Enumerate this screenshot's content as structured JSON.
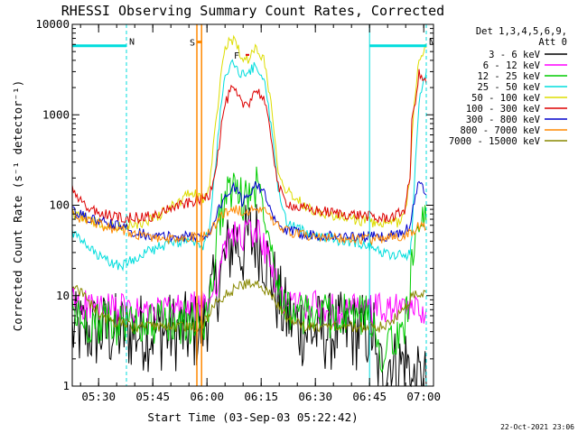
{
  "chart_data": {
    "type": "line",
    "title": "RHESSI Observing Summary Count Rates, Corrected",
    "xlabel": "Start Time (03-Sep-03 05:22:42)",
    "ylabel": "Corrected Count Rate (s⁻¹ detector⁻¹)",
    "yscale": "log",
    "ylim": [
      1,
      10000
    ],
    "xlim_minutes": [
      0,
      100
    ],
    "x_ticks": [
      {
        "t": 7.3,
        "label": "05:30"
      },
      {
        "t": 22.3,
        "label": "05:45"
      },
      {
        "t": 37.3,
        "label": "06:00"
      },
      {
        "t": 52.3,
        "label": "06:15"
      },
      {
        "t": 67.3,
        "label": "06:30"
      },
      {
        "t": 82.3,
        "label": "06:45"
      },
      {
        "t": 97.3,
        "label": "07:00"
      }
    ],
    "y_ticks": [
      {
        "v": 1,
        "label": "1"
      },
      {
        "v": 10,
        "label": "10"
      },
      {
        "v": 100,
        "label": "100"
      },
      {
        "v": 1000,
        "label": "1000"
      },
      {
        "v": 10000,
        "label": "10000"
      }
    ],
    "legend_header": [
      "Det 1,3,4,5,6,9,",
      "Att 0"
    ],
    "series": [
      {
        "name": "3 - 6 keV",
        "color": "#000000",
        "x": [
          0,
          3,
          8,
          12,
          14,
          16,
          18,
          20,
          22,
          24,
          26,
          28,
          30,
          32,
          33.5,
          35,
          36.5,
          38,
          40,
          42,
          44,
          45,
          47,
          49,
          50,
          51,
          53,
          55,
          57,
          59,
          62,
          65,
          70,
          75,
          80,
          82,
          83.5,
          84,
          86,
          88,
          90,
          92,
          93.5,
          94,
          96,
          98
        ],
        "y": [
          4,
          4,
          4,
          4,
          4,
          4,
          4,
          4,
          4,
          4,
          4,
          4,
          4,
          4,
          4,
          4,
          5,
          8,
          13,
          23,
          37,
          45,
          30,
          48,
          38,
          46,
          30,
          18,
          9,
          6,
          5,
          4,
          4,
          4,
          4,
          4,
          4,
          1.5,
          1.5,
          2,
          1.5,
          2,
          1.5,
          1,
          1,
          1
        ]
      },
      {
        "name": "6 - 12 keV",
        "color": "#ff00ff",
        "x": [
          0,
          3,
          8,
          12,
          14,
          16,
          18,
          20,
          22,
          24,
          26,
          28,
          30,
          32,
          33.5,
          35,
          36.5,
          38,
          40,
          42,
          44,
          45,
          47,
          49,
          50,
          51,
          53,
          55,
          57,
          59,
          62,
          65,
          70,
          75,
          80,
          82,
          83.5,
          84,
          86,
          88,
          90,
          92,
          93.5,
          94,
          96,
          98
        ],
        "y": [
          9,
          8,
          7,
          7,
          7,
          6.5,
          6.5,
          6.5,
          6.5,
          6.5,
          6.8,
          7,
          7,
          7,
          7.5,
          7.5,
          7.8,
          9,
          15,
          28,
          48,
          55,
          38,
          58,
          42,
          55,
          36,
          20,
          11,
          9,
          8,
          8,
          7,
          7,
          7,
          7,
          7,
          7,
          7,
          7,
          7,
          7,
          7,
          7,
          7,
          7
        ]
      },
      {
        "name": "12 - 25 keV",
        "color": "#00cc00",
        "x": [
          0,
          3,
          8,
          12,
          14,
          16,
          18,
          20,
          22,
          24,
          26,
          28,
          30,
          32,
          33.5,
          35,
          36.5,
          38,
          40,
          42,
          44,
          45,
          47,
          49,
          50,
          51,
          53,
          55,
          57,
          59,
          62,
          65,
          70,
          75,
          80,
          82,
          83.5,
          84,
          86,
          88,
          90,
          92,
          93.5,
          94,
          96,
          98
        ],
        "y": [
          7,
          5,
          5,
          5,
          5,
          5,
          5,
          5,
          5,
          5,
          5,
          5,
          5,
          5,
          5,
          5,
          5,
          8,
          40,
          120,
          150,
          160,
          110,
          140,
          150,
          170,
          110,
          45,
          14,
          8,
          6,
          6,
          6,
          6,
          6,
          6,
          6,
          2.5,
          2.5,
          3,
          3,
          5,
          12,
          25,
          45,
          65
        ]
      },
      {
        "name": "25 - 50 keV",
        "color": "#00dddd",
        "x": [
          0,
          3,
          8,
          12,
          14,
          16,
          18,
          20,
          22,
          24,
          26,
          28,
          30,
          32,
          33.5,
          35,
          36.5,
          38,
          40,
          42,
          44,
          45,
          47,
          49,
          50,
          51,
          53,
          55,
          57,
          59,
          62,
          65,
          70,
          75,
          80,
          82,
          83.5,
          84,
          86,
          88,
          90,
          92,
          93.5,
          94,
          96,
          98
        ],
        "y": [
          50,
          38,
          26,
          22,
          22,
          24,
          27,
          30,
          32,
          34,
          36,
          38,
          40,
          40,
          38,
          34,
          36,
          60,
          380,
          2700,
          3600,
          3400,
          2800,
          3000,
          3300,
          3500,
          2500,
          800,
          150,
          70,
          55,
          50,
          45,
          40,
          38,
          36,
          36,
          32,
          30,
          28,
          28,
          28,
          30,
          50,
          1500,
          3000
        ]
      },
      {
        "name": "50 - 100 keV",
        "color": "#dddd00",
        "x": [
          0,
          3,
          8,
          12,
          14,
          16,
          18,
          20,
          22,
          24,
          26,
          28,
          30,
          32,
          33.5,
          35,
          36.5,
          38,
          40,
          42,
          44,
          45,
          47,
          49,
          50,
          51,
          53,
          55,
          57,
          59,
          62,
          65,
          70,
          75,
          80,
          82,
          83.5,
          84,
          86,
          88,
          90,
          92,
          93.5,
          94,
          96,
          98
        ],
        "y": [
          80,
          75,
          60,
          58,
          58,
          60,
          62,
          65,
          70,
          78,
          88,
          100,
          110,
          130,
          140,
          120,
          120,
          160,
          1000,
          5200,
          6800,
          6600,
          4400,
          4000,
          5000,
          5600,
          4200,
          1400,
          260,
          150,
          120,
          95,
          80,
          72,
          68,
          66,
          65,
          60,
          60,
          62,
          65,
          80,
          200,
          600,
          4500,
          5500
        ]
      },
      {
        "name": "100 - 300 keV",
        "color": "#dd0000",
        "x": [
          0,
          3,
          8,
          12,
          14,
          16,
          18,
          20,
          22,
          24,
          26,
          28,
          30,
          32,
          33.5,
          35,
          36.5,
          38,
          40,
          42,
          44,
          45,
          47,
          49,
          50,
          51,
          53,
          55,
          57,
          59,
          62,
          65,
          70,
          75,
          80,
          82,
          83.5,
          84,
          86,
          88,
          90,
          92,
          93.5,
          94,
          96,
          98
        ],
        "y": [
          150,
          100,
          80,
          75,
          73,
          73,
          73,
          74,
          75,
          80,
          88,
          95,
          100,
          105,
          110,
          115,
          120,
          130,
          300,
          1200,
          1900,
          1800,
          1300,
          1400,
          1700,
          1900,
          1500,
          600,
          160,
          110,
          95,
          90,
          85,
          80,
          78,
          76,
          75,
          70,
          72,
          74,
          78,
          90,
          200,
          800,
          2800,
          2200
        ]
      },
      {
        "name": "300 - 800 keV",
        "color": "#0000cc",
        "x": [
          0,
          3,
          8,
          12,
          14,
          16,
          18,
          20,
          22,
          24,
          26,
          28,
          30,
          32,
          33.5,
          35,
          36.5,
          38,
          40,
          42,
          44,
          45,
          47,
          49,
          50,
          51,
          53,
          55,
          57,
          59,
          62,
          65,
          70,
          75,
          80,
          82,
          83.5,
          84,
          86,
          88,
          90,
          92,
          93.5,
          94,
          96,
          98
        ],
        "y": [
          85,
          75,
          65,
          60,
          57,
          53,
          50,
          48,
          46,
          45,
          45,
          45,
          45,
          45,
          45,
          45,
          45,
          50,
          80,
          120,
          150,
          155,
          110,
          130,
          160,
          180,
          140,
          80,
          60,
          52,
          50,
          48,
          46,
          45,
          45,
          45,
          45,
          44,
          45,
          46,
          48,
          52,
          60,
          80,
          180,
          130
        ]
      },
      {
        "name": "800 - 7000 keV",
        "color": "#ff8800",
        "x": [
          0,
          3,
          8,
          12,
          14,
          16,
          18,
          20,
          22,
          24,
          26,
          28,
          30,
          32,
          33.5,
          35,
          36.5,
          38,
          40,
          42,
          44,
          45,
          47,
          49,
          50,
          51,
          53,
          55,
          57,
          59,
          62,
          65,
          70,
          75,
          80,
          82,
          83.5,
          84,
          86,
          88,
          90,
          92,
          93.5,
          94,
          96,
          98
        ],
        "y": [
          80,
          70,
          60,
          55,
          52,
          50,
          48,
          46,
          44,
          42,
          42,
          42,
          43,
          44,
          45,
          45,
          46,
          50,
          65,
          80,
          90,
          92,
          85,
          88,
          90,
          92,
          85,
          70,
          58,
          52,
          48,
          46,
          44,
          43,
          42,
          42,
          42,
          42,
          43,
          44,
          45,
          46,
          48,
          50,
          58,
          55
        ]
      },
      {
        "name": "7000 - 15000 keV",
        "color": "#888800",
        "x": [
          0,
          3,
          8,
          12,
          14,
          16,
          18,
          20,
          22,
          24,
          26,
          28,
          30,
          32,
          33.5,
          35,
          36.5,
          38,
          40,
          42,
          44,
          45,
          47,
          49,
          50,
          51,
          53,
          55,
          57,
          59,
          62,
          65,
          70,
          75,
          80,
          82,
          83.5,
          84,
          86,
          88,
          90,
          92,
          93.5,
          94,
          96,
          98
        ],
        "y": [
          14,
          10,
          6,
          5,
          5,
          4.5,
          4.5,
          4.5,
          4.5,
          4.5,
          4.5,
          4.5,
          4.5,
          4.5,
          4.5,
          4.5,
          5,
          6.5,
          8.5,
          10,
          11,
          12,
          13,
          14,
          14.5,
          14,
          12,
          10,
          8,
          6,
          5,
          4.5,
          4.5,
          4.5,
          4.5,
          4.5,
          4.5,
          4.5,
          4.5,
          5,
          6,
          7.5,
          9,
          10,
          10.5,
          11
        ]
      }
    ],
    "annotations": [
      {
        "label": "N",
        "color": "#00dddd",
        "t_start": 0,
        "t_end": 15,
        "level": 5800
      },
      {
        "label": "N",
        "color": "#00dddd",
        "t_start": 82.3,
        "t_end": 98,
        "level": 5800
      },
      {
        "label": "S",
        "color": "#ff8800",
        "t_start": 34.5,
        "t_end": 35.8,
        "level": 7000
      },
      {
        "label": "F",
        "color": "#dd0000",
        "t": 46.5,
        "level": 4600
      }
    ],
    "footer": "22-Oct-2021 23:06"
  }
}
